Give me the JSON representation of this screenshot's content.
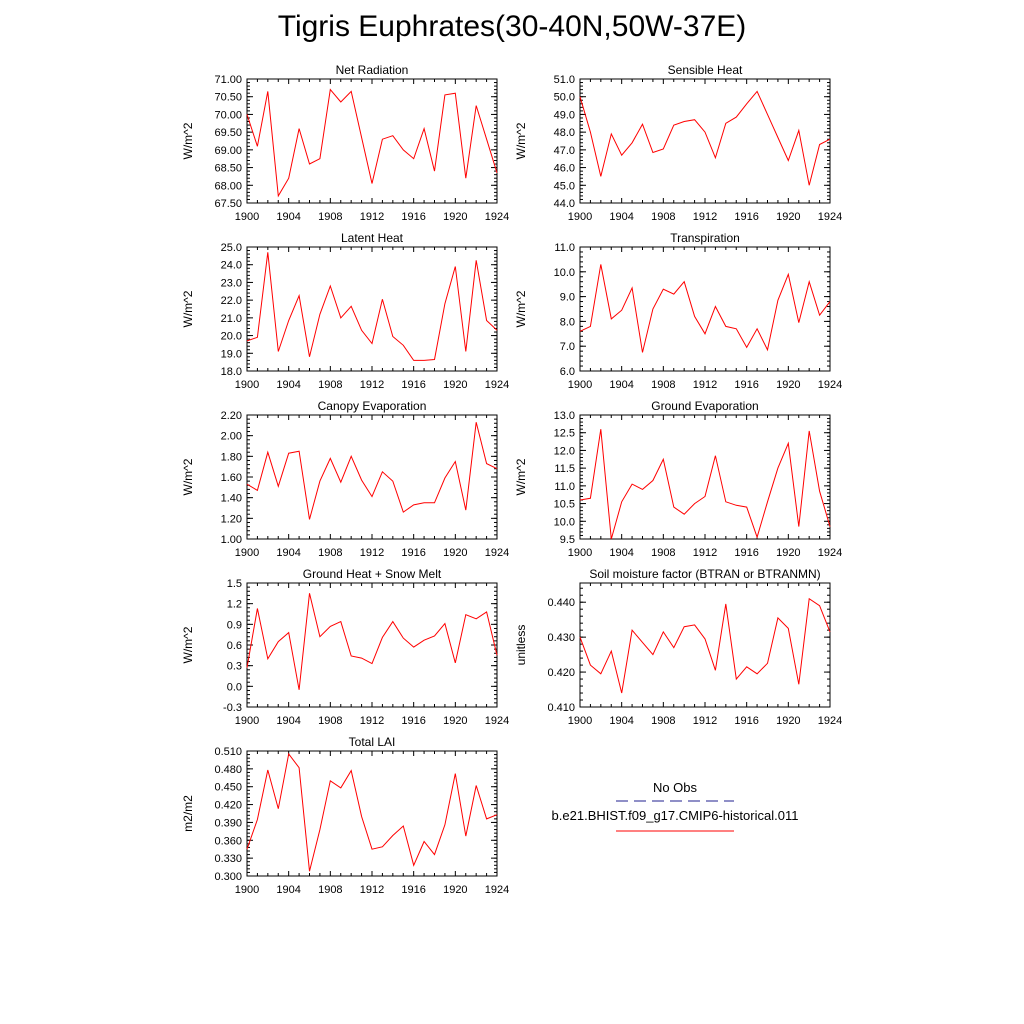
{
  "page_title": "Tigris Euphrates(30-40N,50W-37E)",
  "legend": {
    "entries": [
      {
        "label": "No Obs",
        "color": "#1f1f8f",
        "style": "dashed"
      },
      {
        "label": "b.e21.BHIST.f09_g17.CMIP6-historical.011",
        "color": "#ff0000",
        "style": "solid"
      }
    ]
  },
  "chart_data": [
    {
      "type": "line",
      "title": "Net Radiation",
      "ylabel": "W/m^2",
      "xlim": [
        1900,
        1924
      ],
      "ylim": [
        67.5,
        71.0
      ],
      "xticks": [
        1900,
        1904,
        1908,
        1912,
        1916,
        1920,
        1924
      ],
      "yticks": [
        67.5,
        68.0,
        68.5,
        69.0,
        69.5,
        70.0,
        70.5,
        71.0
      ],
      "ytick_labels": [
        "67.50",
        "68.00",
        "68.50",
        "69.00",
        "69.50",
        "70.00",
        "70.50",
        "71.00"
      ],
      "series": [
        {
          "color": "#ff0000",
          "x": [
            1900,
            1901,
            1902,
            1903,
            1904,
            1905,
            1906,
            1907,
            1908,
            1909,
            1910,
            1911,
            1912,
            1913,
            1914,
            1915,
            1916,
            1917,
            1918,
            1919,
            1920,
            1921,
            1922,
            1923,
            1924
          ],
          "values": [
            70.0,
            69.1,
            70.65,
            67.7,
            68.2,
            69.6,
            68.6,
            68.75,
            70.7,
            70.35,
            70.65,
            69.35,
            68.05,
            69.3,
            69.4,
            69.0,
            68.75,
            69.6,
            68.4,
            70.55,
            70.6,
            68.2,
            70.25,
            69.3,
            68.35
          ]
        }
      ]
    },
    {
      "type": "line",
      "title": "Sensible Heat",
      "ylabel": "W/m^2",
      "xlim": [
        1900,
        1924
      ],
      "ylim": [
        44.0,
        51.0
      ],
      "xticks": [
        1900,
        1904,
        1908,
        1912,
        1916,
        1920,
        1924
      ],
      "yticks": [
        44,
        45,
        46,
        47,
        48,
        49,
        50,
        51
      ],
      "ytick_labels": [
        "44.0",
        "45.0",
        "46.0",
        "47.0",
        "48.0",
        "49.0",
        "50.0",
        "51.0"
      ],
      "series": [
        {
          "color": "#ff0000",
          "x": [
            1900,
            1901,
            1902,
            1903,
            1904,
            1905,
            1906,
            1907,
            1908,
            1909,
            1910,
            1911,
            1912,
            1913,
            1914,
            1915,
            1916,
            1917,
            1918,
            1919,
            1920,
            1921,
            1922,
            1923,
            1924
          ],
          "values": [
            50.0,
            48.0,
            45.5,
            47.9,
            46.7,
            47.4,
            48.45,
            46.85,
            47.05,
            48.4,
            48.6,
            48.7,
            48.0,
            46.55,
            48.5,
            48.85,
            49.6,
            50.3,
            49.0,
            47.7,
            46.4,
            48.1,
            45.0,
            47.3,
            47.6
          ]
        }
      ]
    },
    {
      "type": "line",
      "title": "Latent Heat",
      "ylabel": "W/m^2",
      "xlim": [
        1900,
        1924
      ],
      "ylim": [
        18.0,
        25.0
      ],
      "xticks": [
        1900,
        1904,
        1908,
        1912,
        1916,
        1920,
        1924
      ],
      "yticks": [
        18,
        19,
        20,
        21,
        22,
        23,
        24,
        25
      ],
      "ytick_labels": [
        "18.0",
        "19.0",
        "20.0",
        "21.0",
        "22.0",
        "23.0",
        "24.0",
        "25.0"
      ],
      "series": [
        {
          "color": "#ff0000",
          "x": [
            1900,
            1901,
            1902,
            1903,
            1904,
            1905,
            1906,
            1907,
            1908,
            1909,
            1910,
            1911,
            1912,
            1913,
            1914,
            1915,
            1916,
            1917,
            1918,
            1919,
            1920,
            1921,
            1922,
            1923,
            1924
          ],
          "values": [
            19.7,
            19.9,
            24.7,
            19.1,
            20.85,
            22.25,
            18.8,
            21.2,
            22.8,
            21.0,
            21.65,
            20.3,
            19.55,
            22.05,
            19.95,
            19.45,
            18.6,
            18.6,
            18.65,
            21.8,
            23.9,
            19.1,
            24.25,
            20.85,
            20.3
          ]
        }
      ]
    },
    {
      "type": "line",
      "title": "Transpiration",
      "ylabel": "W/m^2",
      "xlim": [
        1900,
        1924
      ],
      "ylim": [
        6.0,
        11.0
      ],
      "xticks": [
        1900,
        1904,
        1908,
        1912,
        1916,
        1920,
        1924
      ],
      "yticks": [
        6,
        7,
        8,
        9,
        10,
        11
      ],
      "ytick_labels": [
        "6.0",
        "7.0",
        "8.0",
        "9.0",
        "10.0",
        "11.0"
      ],
      "series": [
        {
          "color": "#ff0000",
          "x": [
            1900,
            1901,
            1902,
            1903,
            1904,
            1905,
            1906,
            1907,
            1908,
            1909,
            1910,
            1911,
            1912,
            1913,
            1914,
            1915,
            1916,
            1917,
            1918,
            1919,
            1920,
            1921,
            1922,
            1923,
            1924
          ],
          "values": [
            7.6,
            7.8,
            10.3,
            8.1,
            8.45,
            9.35,
            6.75,
            8.5,
            9.3,
            9.1,
            9.6,
            8.2,
            7.5,
            8.6,
            7.8,
            7.7,
            6.95,
            7.7,
            6.85,
            8.85,
            9.9,
            7.95,
            9.6,
            8.25,
            8.8
          ]
        }
      ]
    },
    {
      "type": "line",
      "title": "Canopy Evaporation",
      "ylabel": "W/m^2",
      "xlim": [
        1900,
        1924
      ],
      "ylim": [
        1.0,
        2.2
      ],
      "xticks": [
        1900,
        1904,
        1908,
        1912,
        1916,
        1920,
        1924
      ],
      "yticks": [
        1.0,
        1.2,
        1.4,
        1.6,
        1.8,
        2.0,
        2.2
      ],
      "ytick_labels": [
        "1.00",
        "1.20",
        "1.40",
        "1.60",
        "1.80",
        "2.00",
        "2.20"
      ],
      "series": [
        {
          "color": "#ff0000",
          "x": [
            1900,
            1901,
            1902,
            1903,
            1904,
            1905,
            1906,
            1907,
            1908,
            1909,
            1910,
            1911,
            1912,
            1913,
            1914,
            1915,
            1916,
            1917,
            1918,
            1919,
            1920,
            1921,
            1922,
            1923,
            1924
          ],
          "values": [
            1.53,
            1.47,
            1.84,
            1.51,
            1.83,
            1.85,
            1.19,
            1.56,
            1.78,
            1.55,
            1.8,
            1.57,
            1.41,
            1.65,
            1.56,
            1.26,
            1.33,
            1.35,
            1.35,
            1.59,
            1.75,
            1.28,
            2.13,
            1.73,
            1.68
          ]
        }
      ]
    },
    {
      "type": "line",
      "title": "Ground Evaporation",
      "ylabel": "W/m^2",
      "xlim": [
        1900,
        1924
      ],
      "ylim": [
        9.5,
        13.0
      ],
      "xticks": [
        1900,
        1904,
        1908,
        1912,
        1916,
        1920,
        1924
      ],
      "yticks": [
        9.5,
        10.0,
        10.5,
        11.0,
        11.5,
        12.0,
        12.5,
        13.0
      ],
      "ytick_labels": [
        "9.5",
        "10.0",
        "10.5",
        "11.0",
        "11.5",
        "12.0",
        "12.5",
        "13.0"
      ],
      "series": [
        {
          "color": "#ff0000",
          "x": [
            1900,
            1901,
            1902,
            1903,
            1904,
            1905,
            1906,
            1907,
            1908,
            1909,
            1910,
            1911,
            1912,
            1913,
            1914,
            1915,
            1916,
            1917,
            1918,
            1919,
            1920,
            1921,
            1922,
            1923,
            1924
          ],
          "values": [
            10.6,
            10.65,
            12.6,
            9.5,
            10.55,
            11.05,
            10.9,
            11.15,
            11.75,
            10.4,
            10.2,
            10.5,
            10.7,
            11.85,
            10.55,
            10.45,
            10.4,
            9.55,
            10.55,
            11.5,
            12.2,
            9.85,
            12.55,
            10.85,
            9.85
          ]
        }
      ]
    },
    {
      "type": "line",
      "title": "Ground Heat + Snow Melt",
      "ylabel": "W/m^2",
      "xlim": [
        1900,
        1924
      ],
      "ylim": [
        -0.3,
        1.5
      ],
      "xticks": [
        1900,
        1904,
        1908,
        1912,
        1916,
        1920,
        1924
      ],
      "yticks": [
        -0.3,
        0.0,
        0.3,
        0.6,
        0.9,
        1.2,
        1.5
      ],
      "ytick_labels": [
        "-0.3",
        "0.0",
        "0.3",
        "0.6",
        "0.9",
        "1.2",
        "1.5"
      ],
      "series": [
        {
          "color": "#ff0000",
          "x": [
            1900,
            1901,
            1902,
            1903,
            1904,
            1905,
            1906,
            1907,
            1908,
            1909,
            1910,
            1911,
            1912,
            1913,
            1914,
            1915,
            1916,
            1917,
            1918,
            1919,
            1920,
            1921,
            1922,
            1923,
            1924
          ],
          "values": [
            0.27,
            1.13,
            0.4,
            0.65,
            0.78,
            -0.05,
            1.35,
            0.72,
            0.87,
            0.94,
            0.44,
            0.41,
            0.33,
            0.71,
            0.94,
            0.7,
            0.57,
            0.67,
            0.73,
            0.91,
            0.34,
            1.04,
            0.98,
            1.08,
            0.45
          ]
        }
      ]
    },
    {
      "type": "line",
      "title": "Soil moisture factor (BTRAN or BTRANMN)",
      "ylabel": "unitless",
      "xlim": [
        1900,
        1924
      ],
      "ylim": [
        0.41,
        0.4455
      ],
      "xticks": [
        1900,
        1904,
        1908,
        1912,
        1916,
        1920,
        1924
      ],
      "yticks": [
        0.41,
        0.42,
        0.43,
        0.44
      ],
      "ytick_labels": [
        "0.410",
        "0.420",
        "0.430",
        "0.440"
      ],
      "series": [
        {
          "color": "#ff0000",
          "x": [
            1900,
            1901,
            1902,
            1903,
            1904,
            1905,
            1906,
            1907,
            1908,
            1909,
            1910,
            1911,
            1912,
            1913,
            1914,
            1915,
            1916,
            1917,
            1918,
            1919,
            1920,
            1921,
            1922,
            1923,
            1924
          ],
          "values": [
            0.43,
            0.422,
            0.4195,
            0.426,
            0.414,
            0.432,
            0.4285,
            0.425,
            0.4315,
            0.427,
            0.433,
            0.4335,
            0.4295,
            0.4205,
            0.4395,
            0.418,
            0.4215,
            0.4195,
            0.4225,
            0.4355,
            0.4325,
            0.4165,
            0.441,
            0.439,
            0.4315
          ]
        }
      ]
    },
    {
      "type": "line",
      "title": "Total LAI",
      "ylabel": "m2/m2",
      "xlim": [
        1900,
        1924
      ],
      "ylim": [
        0.3,
        0.51
      ],
      "xticks": [
        1900,
        1904,
        1908,
        1912,
        1916,
        1920,
        1924
      ],
      "yticks": [
        0.3,
        0.33,
        0.36,
        0.39,
        0.42,
        0.45,
        0.48,
        0.51
      ],
      "ytick_labels": [
        "0.300",
        "0.330",
        "0.360",
        "0.390",
        "0.420",
        "0.450",
        "0.480",
        "0.510"
      ],
      "series": [
        {
          "color": "#ff0000",
          "x": [
            1900,
            1901,
            1902,
            1903,
            1904,
            1905,
            1906,
            1907,
            1908,
            1909,
            1910,
            1911,
            1912,
            1913,
            1914,
            1915,
            1916,
            1917,
            1918,
            1919,
            1920,
            1921,
            1922,
            1923,
            1924
          ],
          "values": [
            0.345,
            0.395,
            0.478,
            0.413,
            0.505,
            0.482,
            0.308,
            0.378,
            0.46,
            0.448,
            0.477,
            0.4,
            0.345,
            0.349,
            0.368,
            0.384,
            0.318,
            0.358,
            0.336,
            0.386,
            0.472,
            0.367,
            0.452,
            0.396,
            0.403
          ]
        }
      ]
    }
  ]
}
